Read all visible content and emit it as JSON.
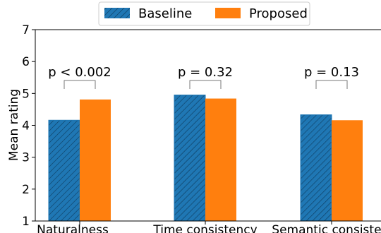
{
  "chart_data": {
    "type": "bar",
    "title": "",
    "xlabel": "",
    "ylabel": "Mean rating",
    "ylim": [
      1,
      7
    ],
    "yticks": [
      1,
      2,
      3,
      4,
      5,
      6,
      7
    ],
    "categories": [
      "Naturalness",
      "Time consistency",
      "Semantic consistency"
    ],
    "series": [
      {
        "name": "Baseline",
        "values": [
          4.16,
          4.95,
          4.33
        ],
        "color": "#1f77b4",
        "pattern": "hatch"
      },
      {
        "name": "Proposed",
        "values": [
          4.81,
          4.84,
          4.16
        ],
        "color": "#ff7f0e",
        "pattern": "solid"
      }
    ],
    "annotations": [
      "p < 0.002",
      "p = 0.32",
      "p = 0.13"
    ],
    "legend_position": "top-center",
    "grid": false
  }
}
